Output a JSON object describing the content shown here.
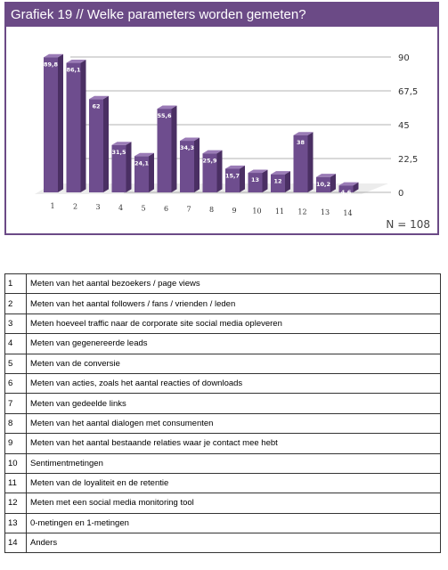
{
  "header": {
    "title": "Grafiek 19 // Welke parameters worden gemeten?"
  },
  "footer": {
    "n_label": "N = 108"
  },
  "chart_data": {
    "type": "bar",
    "categories": [
      "1",
      "2",
      "3",
      "4",
      "5",
      "6",
      "7",
      "8",
      "9",
      "10",
      "11",
      "12",
      "13",
      "14"
    ],
    "values": [
      89.8,
      86.1,
      62,
      31.5,
      24.1,
      55.6,
      34.3,
      25.9,
      15.7,
      13,
      12,
      38,
      10.2,
      4.6
    ],
    "value_labels": [
      "89,8",
      "86,1",
      "62",
      "31,5",
      "24,1",
      "55,6",
      "34,3",
      "25,9",
      "15,7",
      "13",
      "12",
      "38",
      "10,2",
      "4,6"
    ],
    "y_ticks": [
      0,
      22.5,
      45,
      67.5,
      90
    ],
    "y_tick_labels": [
      "0",
      "22,5",
      "45",
      "67,5",
      "90"
    ],
    "ylim": [
      0,
      90
    ],
    "grid": true,
    "bar_color": "#6e4d8e",
    "bar_side_color": "#4a2f63",
    "bar_top_color": "#9a7bb6"
  },
  "legend_table": [
    {
      "num": "1",
      "text": "Meten van het aantal bezoekers / page views"
    },
    {
      "num": "2",
      "text": "Meten van het aantal followers / fans / vrienden / leden"
    },
    {
      "num": "3",
      "text": "Meten hoeveel traffic naar de corporate site social media opleveren"
    },
    {
      "num": "4",
      "text": "Meten van gegenereerde leads"
    },
    {
      "num": "5",
      "text": "Meten van de conversie"
    },
    {
      "num": "6",
      "text": "Meten van acties, zoals het aantal reacties of downloads"
    },
    {
      "num": "7",
      "text": "Meten van gedeelde links"
    },
    {
      "num": "8",
      "text": "Meten van het aantal dialogen met consumenten"
    },
    {
      "num": "9",
      "text": "Meten van het aantal bestaande relaties waar je contact mee hebt"
    },
    {
      "num": "10",
      "text": "Sentimentmetingen"
    },
    {
      "num": "11",
      "text": "Meten van de loyaliteit en de retentie"
    },
    {
      "num": "12",
      "text": "Meten met een social media monitoring tool"
    },
    {
      "num": "13",
      "text": "0-metingen en 1-metingen"
    },
    {
      "num": "14",
      "text": "Anders"
    }
  ]
}
